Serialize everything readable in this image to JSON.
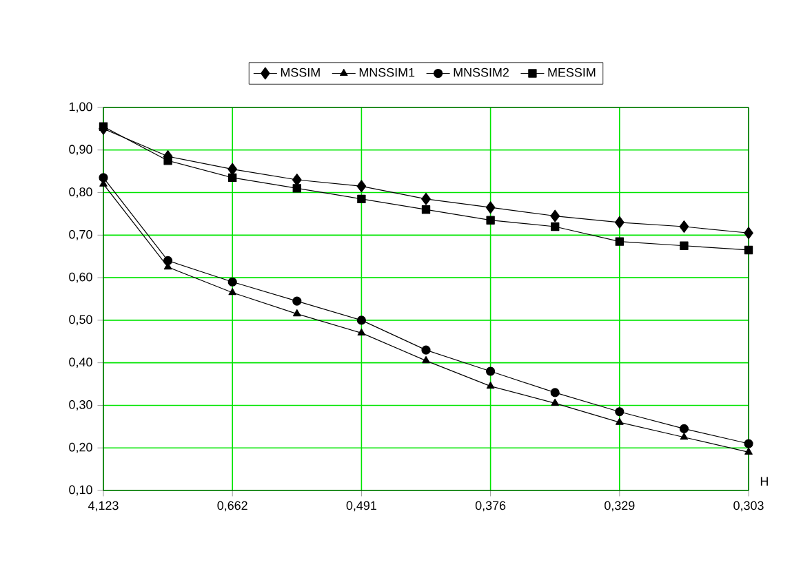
{
  "chart_data": {
    "type": "line",
    "xlabel": "H",
    "categories": [
      "4,123",
      null,
      "0,662",
      null,
      "0,491",
      null,
      "0,376",
      null,
      "0,329",
      null,
      "0,303"
    ],
    "series": [
      {
        "name": "MSSIM",
        "color": "#000000",
        "marker": "diamond",
        "values": [
          0.95,
          0.885,
          0.855,
          0.83,
          0.815,
          0.785,
          0.765,
          0.745,
          0.73,
          0.72,
          0.705
        ]
      },
      {
        "name": "MNSSIM1",
        "color": "#000000",
        "marker": "triangle",
        "values": [
          0.82,
          0.625,
          0.565,
          0.515,
          0.47,
          0.405,
          0.345,
          0.305,
          0.26,
          0.225,
          0.19
        ]
      },
      {
        "name": "MNSSIM2",
        "color": "#000000",
        "marker": "circle",
        "values": [
          0.835,
          0.64,
          0.59,
          0.545,
          0.5,
          0.43,
          0.38,
          0.33,
          0.285,
          0.245,
          0.21
        ]
      },
      {
        "name": "MESSIM",
        "color": "#000000",
        "marker": "square",
        "values": [
          0.955,
          0.875,
          0.835,
          0.81,
          0.785,
          0.76,
          0.735,
          0.72,
          0.685,
          0.675,
          0.665
        ]
      }
    ],
    "ylim": [
      0.1,
      1.0
    ],
    "yticks": [
      {
        "value": 0.1,
        "label": "0,10"
      },
      {
        "value": 0.2,
        "label": "0,20"
      },
      {
        "value": 0.3,
        "label": "0,30"
      },
      {
        "value": 0.4,
        "label": "0,40"
      },
      {
        "value": 0.5,
        "label": "0,50"
      },
      {
        "value": 0.6,
        "label": "0,60"
      },
      {
        "value": 0.7,
        "label": "0,70"
      },
      {
        "value": 0.8,
        "label": "0,80"
      },
      {
        "value": 0.9,
        "label": "0,90"
      },
      {
        "value": 1.0,
        "label": "1,00"
      }
    ],
    "grid": true,
    "legend": "top",
    "line_style": "solid"
  }
}
